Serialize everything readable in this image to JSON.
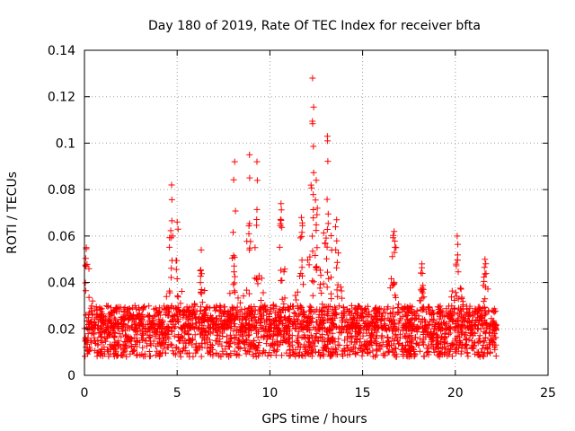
{
  "chart_data": {
    "type": "scatter",
    "title": "Day 180 of 2019, Rate Of TEC Index for receiver bfta",
    "xlabel": "GPS time / hours",
    "ylabel": "ROTI / TECUs",
    "xlim": [
      0,
      25
    ],
    "ylim": [
      0,
      0.14
    ],
    "xticks": [
      0,
      5,
      10,
      15,
      20,
      25
    ],
    "xtick_labels": [
      "0",
      "5",
      "10",
      "15",
      "20",
      "25"
    ],
    "yticks": [
      0,
      0.02,
      0.04,
      0.06,
      0.08,
      0.1,
      0.12,
      0.14
    ],
    "ytick_labels": [
      "0",
      "0.02",
      "0.04",
      "0.06",
      "0.08",
      "0.1",
      "0.12",
      "0.14"
    ],
    "grid": true,
    "marker": "+",
    "color": "#ff0000",
    "series": [
      {
        "name": "ROTI",
        "x_range": [
          0,
          22.2
        ],
        "baseline_range": [
          0.005,
          0.03
        ],
        "peaks": [
          {
            "x": 0.1,
            "y": 0.055
          },
          {
            "x": 4.7,
            "y": 0.082
          },
          {
            "x": 5.0,
            "y": 0.066
          },
          {
            "x": 6.3,
            "y": 0.054
          },
          {
            "x": 8.1,
            "y": 0.092
          },
          {
            "x": 8.9,
            "y": 0.095
          },
          {
            "x": 9.3,
            "y": 0.092
          },
          {
            "x": 10.6,
            "y": 0.074
          },
          {
            "x": 11.7,
            "y": 0.068
          },
          {
            "x": 12.3,
            "y": 0.128
          },
          {
            "x": 12.5,
            "y": 0.084
          },
          {
            "x": 13.1,
            "y": 0.103
          },
          {
            "x": 13.6,
            "y": 0.067
          },
          {
            "x": 16.7,
            "y": 0.062
          },
          {
            "x": 18.2,
            "y": 0.048
          },
          {
            "x": 20.1,
            "y": 0.06
          },
          {
            "x": 21.6,
            "y": 0.05
          }
        ]
      }
    ]
  }
}
